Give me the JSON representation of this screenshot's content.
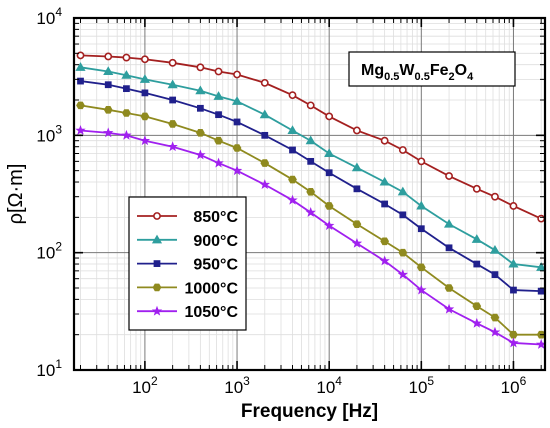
{
  "chart_data": {
    "type": "line",
    "xscale": "log",
    "yscale": "log",
    "xlabel": "Frequency [Hz]",
    "ylabel": "ρ[Ω·m]",
    "xlim": [
      17,
      2200000
    ],
    "ylim": [
      10,
      10000
    ],
    "xtick_labels": [
      {
        "value": 100,
        "base": "10",
        "exp": "2"
      },
      {
        "value": 1000,
        "base": "10",
        "exp": "3"
      },
      {
        "value": 10000,
        "base": "10",
        "exp": "4"
      },
      {
        "value": 100000,
        "base": "10",
        "exp": "5"
      },
      {
        "value": 1000000,
        "base": "10",
        "exp": "6"
      }
    ],
    "ytick_labels": [
      {
        "value": 10,
        "base": "10",
        "exp": "1"
      },
      {
        "value": 100,
        "base": "10",
        "exp": "2"
      },
      {
        "value": 1000,
        "base": "10",
        "exp": "3"
      },
      {
        "value": 10000,
        "base": "10",
        "exp": "4"
      }
    ],
    "grid": true,
    "legend_position": "lower-left",
    "annotation": {
      "parts": [
        {
          "text": "Mg",
          "sub": false
        },
        {
          "text": "0.5",
          "sub": true
        },
        {
          "text": "W",
          "sub": false
        },
        {
          "text": "0.5",
          "sub": true
        },
        {
          "text": "Fe",
          "sub": false
        },
        {
          "text": "2",
          "sub": true
        },
        {
          "text": "O",
          "sub": false
        },
        {
          "text": "4",
          "sub": true
        }
      ],
      "position": "top-right"
    },
    "x": [
      20,
      40,
      63,
      100,
      200,
      400,
      630,
      1000,
      2000,
      4000,
      6300,
      10000,
      20000,
      40000,
      63000,
      100000,
      200000,
      400000,
      630000,
      1000000,
      2000000
    ],
    "series": [
      {
        "name": "850°C",
        "color": "#a42020",
        "marker": "circle",
        "markerFill": "#ffffff",
        "values": [
          4800,
          4700,
          4600,
          4450,
          4150,
          3800,
          3500,
          3300,
          2800,
          2200,
          1800,
          1450,
          1100,
          900,
          750,
          600,
          450,
          350,
          300,
          250,
          195
        ]
      },
      {
        "name": "900°C",
        "color": "#2e9e9e",
        "marker": "triangle",
        "markerFill": "#2e9e9e",
        "values": [
          3800,
          3500,
          3250,
          3000,
          2700,
          2400,
          2150,
          1950,
          1500,
          1100,
          900,
          700,
          530,
          400,
          330,
          250,
          175,
          130,
          105,
          80,
          75
        ]
      },
      {
        "name": "950°C",
        "color": "#20208c",
        "marker": "square",
        "markerFill": "#20208c",
        "values": [
          2900,
          2700,
          2500,
          2300,
          2000,
          1700,
          1500,
          1300,
          1000,
          750,
          600,
          480,
          350,
          260,
          210,
          160,
          110,
          80,
          65,
          48,
          47
        ]
      },
      {
        "name": "1000°C",
        "color": "#8f8a1f",
        "marker": "hexagon",
        "markerFill": "#8f8a1f",
        "values": [
          1800,
          1650,
          1550,
          1450,
          1250,
          1050,
          900,
          780,
          580,
          420,
          330,
          250,
          175,
          125,
          100,
          75,
          50,
          35,
          28,
          20,
          20
        ]
      },
      {
        "name": "1050°C",
        "color": "#a020ef",
        "marker": "star",
        "markerFill": "#a020ef",
        "values": [
          1100,
          1050,
          1000,
          900,
          800,
          680,
          580,
          500,
          380,
          280,
          220,
          170,
          120,
          85,
          65,
          48,
          33,
          25,
          21,
          17,
          16.5
        ]
      }
    ]
  }
}
